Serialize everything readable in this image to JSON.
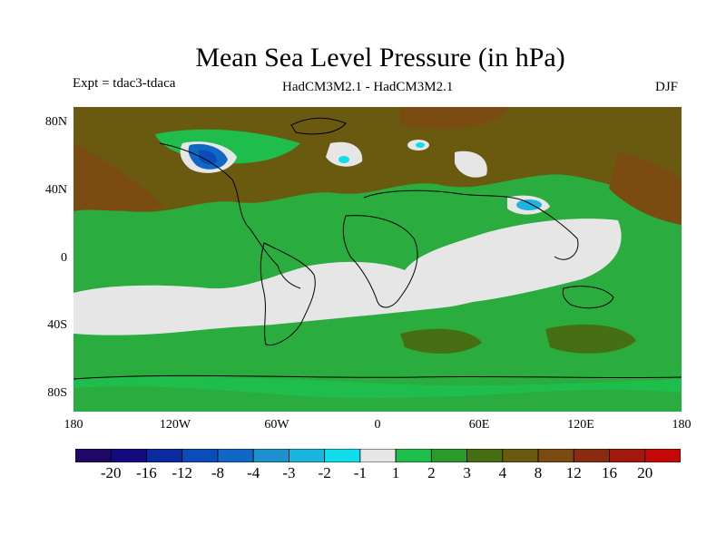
{
  "title": "Mean Sea Level Pressure (in hPa)",
  "experiment": "Expt = tdac3-tdaca",
  "model": "HadCM3M2.1 - HadCM3M2.1",
  "season": "DJF",
  "lat_labels": [
    "80N",
    "40N",
    "0",
    "40S",
    "80S"
  ],
  "lon_labels": [
    "180",
    "120W",
    "60W",
    "0",
    "60E",
    "120E",
    "180"
  ],
  "colorbar": {
    "colors": [
      "#1f0868",
      "#130a80",
      "#0a2a9e",
      "#0a4cb8",
      "#1068c4",
      "#1e90d0",
      "#1ab4e0",
      "#10dcea",
      "#e6e6e6",
      "#1fbe4c",
      "#2a9a2a",
      "#466e12",
      "#6a5a10",
      "#7a4c12",
      "#8a2a0e",
      "#a0180e",
      "#c40808"
    ],
    "labels": [
      "-20",
      "-16",
      "-12",
      "-8",
      "-4",
      "-3",
      "-2",
      "-1",
      "1",
      "2",
      "3",
      "4",
      "8",
      "12",
      "16",
      "20"
    ]
  },
  "legend_colors": {
    "land_tone": "#5b6a14",
    "brown": "#7a4c12",
    "green": "#2aac3e",
    "light_green": "#1fbe4c",
    "grey": "#e6e6e6",
    "blue": "#1068c4",
    "cyan": "#10dcea",
    "coast": "#000000"
  }
}
